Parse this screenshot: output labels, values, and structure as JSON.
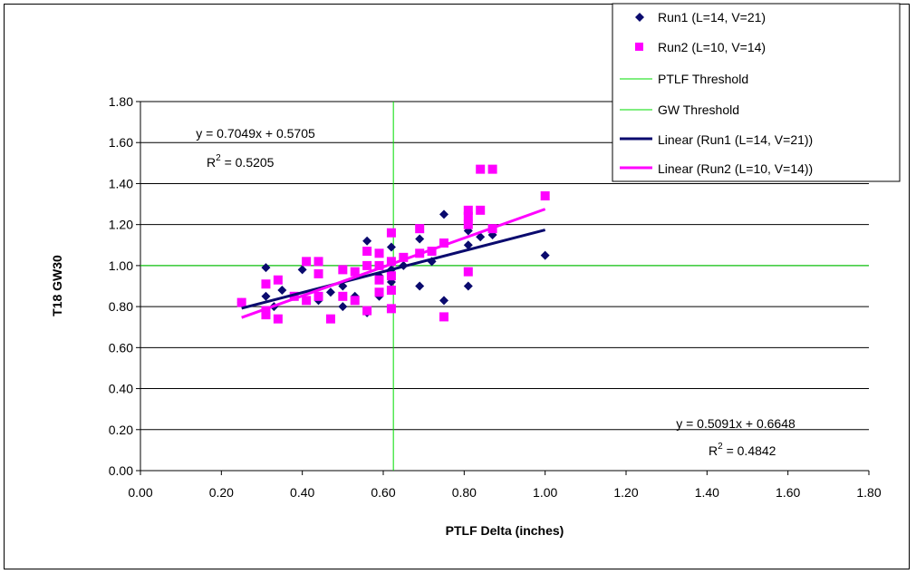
{
  "chart_data": {
    "type": "scatter",
    "title": "",
    "xlabel": "PTLF Delta (inches)",
    "ylabel": "T18 GW30",
    "xlim": [
      0,
      1.8
    ],
    "ylim": [
      0,
      1.8
    ],
    "x_ticks": [
      "0.00",
      "0.20",
      "0.40",
      "0.60",
      "0.80",
      "1.00",
      "1.20",
      "1.40",
      "1.60",
      "1.80"
    ],
    "y_ticks": [
      "0.00",
      "0.20",
      "0.40",
      "0.60",
      "0.80",
      "1.00",
      "1.20",
      "1.40",
      "1.60",
      "1.80"
    ],
    "y_gridlines": true,
    "legend_position": "top-right",
    "colors": {
      "run1": "#0a0a6e",
      "run2": "#ff00ff",
      "threshold": "#00dd00"
    },
    "series": [
      {
        "name": "Run1 (L=14, V=21)",
        "marker": "diamond",
        "points": [
          [
            0.25,
            0.82
          ],
          [
            0.31,
            0.99
          ],
          [
            0.31,
            0.85
          ],
          [
            0.33,
            0.8
          ],
          [
            0.35,
            0.88
          ],
          [
            0.38,
            0.85
          ],
          [
            0.4,
            0.98
          ],
          [
            0.44,
            0.85
          ],
          [
            0.44,
            0.83
          ],
          [
            0.47,
            0.87
          ],
          [
            0.5,
            0.8
          ],
          [
            0.5,
            0.9
          ],
          [
            0.53,
            0.85
          ],
          [
            0.56,
            1.12
          ],
          [
            0.56,
            0.77
          ],
          [
            0.59,
            0.95
          ],
          [
            0.59,
            0.85
          ],
          [
            0.62,
            1.09
          ],
          [
            0.62,
            0.98
          ],
          [
            0.62,
            0.92
          ],
          [
            0.65,
            1.0
          ],
          [
            0.69,
            0.9
          ],
          [
            0.69,
            1.13
          ],
          [
            0.72,
            1.02
          ],
          [
            0.75,
            1.25
          ],
          [
            0.75,
            0.83
          ],
          [
            0.81,
            1.17
          ],
          [
            0.81,
            0.9
          ],
          [
            0.81,
            1.1
          ],
          [
            0.84,
            1.14
          ],
          [
            0.87,
            1.15
          ],
          [
            1.0,
            1.05
          ]
        ]
      },
      {
        "name": "Run2 (L=10, V=14)",
        "marker": "square",
        "points": [
          [
            0.25,
            0.82
          ],
          [
            0.31,
            0.91
          ],
          [
            0.31,
            0.76
          ],
          [
            0.31,
            0.78
          ],
          [
            0.34,
            0.93
          ],
          [
            0.34,
            0.74
          ],
          [
            0.38,
            0.85
          ],
          [
            0.41,
            1.02
          ],
          [
            0.41,
            0.83
          ],
          [
            0.44,
            1.02
          ],
          [
            0.44,
            0.96
          ],
          [
            0.44,
            0.85
          ],
          [
            0.47,
            0.74
          ],
          [
            0.5,
            0.98
          ],
          [
            0.5,
            0.85
          ],
          [
            0.53,
            0.97
          ],
          [
            0.53,
            0.83
          ],
          [
            0.56,
            1.07
          ],
          [
            0.56,
            1.0
          ],
          [
            0.56,
            0.78
          ],
          [
            0.59,
            1.06
          ],
          [
            0.59,
            1.0
          ],
          [
            0.59,
            0.93
          ],
          [
            0.59,
            0.87
          ],
          [
            0.62,
            1.16
          ],
          [
            0.62,
            1.02
          ],
          [
            0.62,
            0.95
          ],
          [
            0.62,
            0.88
          ],
          [
            0.62,
            0.79
          ],
          [
            0.65,
            1.04
          ],
          [
            0.69,
            1.18
          ],
          [
            0.69,
            1.06
          ],
          [
            0.72,
            1.07
          ],
          [
            0.75,
            1.11
          ],
          [
            0.75,
            0.75
          ],
          [
            0.81,
            1.27
          ],
          [
            0.81,
            1.24
          ],
          [
            0.81,
            1.2
          ],
          [
            0.81,
            0.97
          ],
          [
            0.84,
            1.47
          ],
          [
            0.84,
            1.27
          ],
          [
            0.87,
            1.47
          ],
          [
            0.87,
            1.18
          ],
          [
            1.0,
            1.34
          ]
        ]
      }
    ],
    "thresholds": [
      {
        "name": "PTLF Threshold",
        "orientation": "vertical",
        "value": 0.625
      },
      {
        "name": "GW Threshold",
        "orientation": "horizontal",
        "value": 1.0
      }
    ],
    "trendlines": [
      {
        "name": "Linear (Run1 (L=14, V=21))",
        "slope": 0.5091,
        "intercept": 0.6648,
        "x_range": [
          0.25,
          1.0
        ],
        "style": "run1"
      },
      {
        "name": "Linear (Run2 (L=10, V=14))",
        "slope": 0.7049,
        "intercept": 0.5705,
        "x_range": [
          0.25,
          1.0
        ],
        "style": "run2"
      }
    ],
    "annotations": {
      "eq_run2": "y = 0.7049x + 0.5705",
      "r2_run2_value": " = 0.5205",
      "eq_run1": "y = 0.5091x + 0.6648",
      "r2_run1_value": " = 0.4842",
      "r2_prefix": "R",
      "r2_superscript": "2"
    }
  }
}
